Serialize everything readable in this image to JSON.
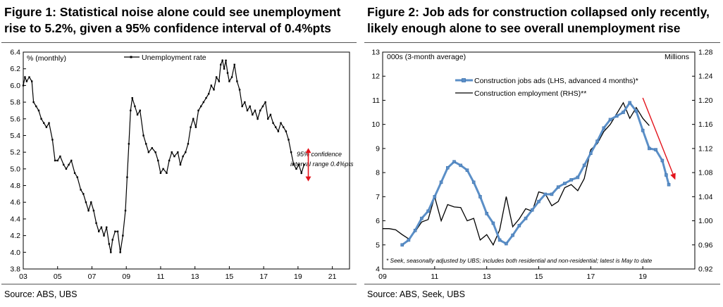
{
  "charts": [
    {
      "title": "Figure 1: Statistical noise alone could see unemployment rise to 5.2%, given a 95% confidence interval of 0.4%pts",
      "source": "Source:  ABS, UBS",
      "units_label": "% (monthly)",
      "legend": "Unemployment rate",
      "annotation": [
        "95% confidence",
        "interval range 0.4%pts"
      ],
      "colors": {
        "line": "#000000",
        "arrow": "#e3131b"
      }
    },
    {
      "title": "Figure 2: Job ads for construction collapsed only recently, likely enough alone to see overall unemployment rise",
      "source": "Source:  ABS, Seek, UBS",
      "units_left": "000s (3-month average)",
      "units_right": "Millions",
      "footnote": "* Seek, seasonally adjusted by UBS; includes both residential and non-residential; latest is May to date",
      "colors": {
        "ads": "#5b8fc7",
        "emp": "#000000",
        "arrow": "#e3131b"
      }
    }
  ],
  "chart_data": [
    {
      "type": "line",
      "xlabel": "",
      "ylabel": "% (monthly)",
      "xlim": [
        2003.0,
        2022.0
      ],
      "ylim": [
        3.8,
        6.4
      ],
      "x_ticks": [
        2003,
        2005,
        2007,
        2009,
        2011,
        2013,
        2015,
        2017,
        2019,
        2021
      ],
      "x_tick_labels": [
        "03",
        "05",
        "07",
        "09",
        "11",
        "13",
        "15",
        "17",
        "19",
        "21"
      ],
      "y_ticks": [
        3.8,
        4.0,
        4.2,
        4.4,
        4.6,
        4.8,
        5.0,
        5.2,
        5.4,
        5.6,
        5.8,
        6.0,
        6.2,
        6.4
      ],
      "y_tick_labels": [
        "3.8",
        "4.0",
        "4.2",
        "4.4",
        "4.6",
        "4.8",
        "5.0",
        "5.2",
        "5.4",
        "5.6",
        "5.8",
        "6.0",
        "6.2",
        "6.4"
      ],
      "series": [
        {
          "name": "Unemployment rate",
          "points": [
            [
              2003.0,
              6.0
            ],
            [
              2003.1,
              6.1
            ],
            [
              2003.2,
              6.05
            ],
            [
              2003.35,
              6.1
            ],
            [
              2003.5,
              6.05
            ],
            [
              2003.6,
              5.8
            ],
            [
              2003.75,
              5.75
            ],
            [
              2003.9,
              5.7
            ],
            [
              2004.05,
              5.6
            ],
            [
              2004.2,
              5.55
            ],
            [
              2004.35,
              5.5
            ],
            [
              2004.5,
              5.55
            ],
            [
              2004.7,
              5.35
            ],
            [
              2004.85,
              5.1
            ],
            [
              2005.0,
              5.1
            ],
            [
              2005.15,
              5.15
            ],
            [
              2005.35,
              5.05
            ],
            [
              2005.5,
              5.0
            ],
            [
              2005.65,
              5.05
            ],
            [
              2005.8,
              5.1
            ],
            [
              2006.0,
              4.95
            ],
            [
              2006.15,
              4.9
            ],
            [
              2006.35,
              4.75
            ],
            [
              2006.5,
              4.7
            ],
            [
              2006.65,
              4.6
            ],
            [
              2006.8,
              4.5
            ],
            [
              2006.95,
              4.6
            ],
            [
              2007.1,
              4.5
            ],
            [
              2007.25,
              4.35
            ],
            [
              2007.4,
              4.25
            ],
            [
              2007.55,
              4.3
            ],
            [
              2007.7,
              4.2
            ],
            [
              2007.85,
              4.3
            ],
            [
              2008.0,
              4.1
            ],
            [
              2008.1,
              4.0
            ],
            [
              2008.2,
              4.15
            ],
            [
              2008.35,
              4.25
            ],
            [
              2008.5,
              4.25
            ],
            [
              2008.65,
              4.0
            ],
            [
              2008.8,
              4.2
            ],
            [
              2008.95,
              4.5
            ],
            [
              2009.05,
              4.9
            ],
            [
              2009.15,
              5.3
            ],
            [
              2009.25,
              5.7
            ],
            [
              2009.35,
              5.85
            ],
            [
              2009.5,
              5.75
            ],
            [
              2009.65,
              5.65
            ],
            [
              2009.8,
              5.7
            ],
            [
              2010.0,
              5.4
            ],
            [
              2010.15,
              5.3
            ],
            [
              2010.3,
              5.2
            ],
            [
              2010.5,
              5.25
            ],
            [
              2010.7,
              5.2
            ],
            [
              2010.85,
              5.1
            ],
            [
              2011.0,
              4.95
            ],
            [
              2011.15,
              5.0
            ],
            [
              2011.35,
              4.95
            ],
            [
              2011.5,
              5.1
            ],
            [
              2011.65,
              5.2
            ],
            [
              2011.8,
              5.15
            ],
            [
              2012.0,
              5.2
            ],
            [
              2012.15,
              5.05
            ],
            [
              2012.3,
              5.15
            ],
            [
              2012.45,
              5.2
            ],
            [
              2012.6,
              5.3
            ],
            [
              2012.75,
              5.5
            ],
            [
              2012.9,
              5.6
            ],
            [
              2013.05,
              5.5
            ],
            [
              2013.2,
              5.7
            ],
            [
              2013.35,
              5.75
            ],
            [
              2013.5,
              5.8
            ],
            [
              2013.65,
              5.85
            ],
            [
              2013.8,
              5.9
            ],
            [
              2013.95,
              6.0
            ],
            [
              2014.1,
              5.95
            ],
            [
              2014.25,
              6.1
            ],
            [
              2014.4,
              6.05
            ],
            [
              2014.5,
              6.25
            ],
            [
              2014.6,
              6.3
            ],
            [
              2014.7,
              6.2
            ],
            [
              2014.8,
              6.3
            ],
            [
              2014.9,
              6.15
            ],
            [
              2015.0,
              6.05
            ],
            [
              2015.15,
              6.1
            ],
            [
              2015.3,
              6.25
            ],
            [
              2015.45,
              6.05
            ],
            [
              2015.6,
              5.95
            ],
            [
              2015.75,
              5.75
            ],
            [
              2015.9,
              5.8
            ],
            [
              2016.05,
              5.7
            ],
            [
              2016.2,
              5.75
            ],
            [
              2016.35,
              5.65
            ],
            [
              2016.5,
              5.7
            ],
            [
              2016.65,
              5.6
            ],
            [
              2016.8,
              5.7
            ],
            [
              2016.95,
              5.75
            ],
            [
              2017.1,
              5.8
            ],
            [
              2017.25,
              5.6
            ],
            [
              2017.4,
              5.65
            ],
            [
              2017.55,
              5.55
            ],
            [
              2017.7,
              5.5
            ],
            [
              2017.85,
              5.45
            ],
            [
              2018.0,
              5.55
            ],
            [
              2018.15,
              5.5
            ],
            [
              2018.3,
              5.45
            ],
            [
              2018.45,
              5.35
            ],
            [
              2018.6,
              5.2
            ],
            [
              2018.75,
              5.05
            ],
            [
              2018.9,
              5.0
            ],
            [
              2019.05,
              5.05
            ],
            [
              2019.2,
              4.95
            ],
            [
              2019.35,
              5.05
            ]
          ]
        }
      ],
      "annotations": [
        "95% confidence interval range 0.4%pts"
      ],
      "arrow_range": [
        4.85,
        5.25
      ],
      "arrow_x": 2019.6,
      "legend_position": "top-center",
      "grid": false
    },
    {
      "type": "line",
      "xlabel": "",
      "ylabel_left": "000s (3-month average)",
      "ylabel_right": "Millions",
      "xlim": [
        2009.0,
        2021.0
      ],
      "ylim_left": [
        4,
        13
      ],
      "ylim_right": [
        0.92,
        1.28
      ],
      "x_ticks": [
        2009,
        2011,
        2013,
        2015,
        2017,
        2019
      ],
      "x_tick_labels": [
        "09",
        "11",
        "13",
        "15",
        "17",
        "19"
      ],
      "y_ticks_left": [
        4,
        5,
        6,
        7,
        8,
        9,
        10,
        11,
        12,
        13
      ],
      "y_tick_labels_left": [
        "4",
        "5",
        "6",
        "7",
        "8",
        "9",
        "10",
        "11",
        "12",
        "13"
      ],
      "y_ticks_right": [
        0.92,
        0.96,
        1.0,
        1.04,
        1.08,
        1.12,
        1.16,
        1.2,
        1.24,
        1.28
      ],
      "y_tick_labels_right": [
        "0.92",
        "0.96",
        "1.00",
        "1.04",
        "1.08",
        "1.12",
        "1.16",
        "1.20",
        "1.24",
        "1.28"
      ],
      "series": [
        {
          "name": "Construction jobs ads (LHS, advanced 4 months)*",
          "axis": "left",
          "points": [
            [
              2009.75,
              5.0
            ],
            [
              2010.0,
              5.2
            ],
            [
              2010.25,
              5.6
            ],
            [
              2010.5,
              6.1
            ],
            [
              2010.75,
              6.4
            ],
            [
              2011.0,
              7.0
            ],
            [
              2011.25,
              7.6
            ],
            [
              2011.5,
              8.2
            ],
            [
              2011.75,
              8.45
            ],
            [
              2012.0,
              8.3
            ],
            [
              2012.25,
              8.1
            ],
            [
              2012.5,
              7.6
            ],
            [
              2012.75,
              7.0
            ],
            [
              2013.0,
              6.3
            ],
            [
              2013.25,
              5.9
            ],
            [
              2013.5,
              5.2
            ],
            [
              2013.75,
              5.05
            ],
            [
              2014.0,
              5.4
            ],
            [
              2014.25,
              5.8
            ],
            [
              2014.5,
              6.1
            ],
            [
              2014.75,
              6.45
            ],
            [
              2015.0,
              6.8
            ],
            [
              2015.25,
              7.1
            ],
            [
              2015.5,
              7.1
            ],
            [
              2015.75,
              7.4
            ],
            [
              2016.0,
              7.55
            ],
            [
              2016.25,
              7.7
            ],
            [
              2016.5,
              7.8
            ],
            [
              2016.75,
              8.3
            ],
            [
              2017.0,
              8.8
            ],
            [
              2017.25,
              9.3
            ],
            [
              2017.5,
              9.85
            ],
            [
              2017.75,
              10.2
            ],
            [
              2018.0,
              10.35
            ],
            [
              2018.25,
              10.5
            ],
            [
              2018.5,
              10.9
            ],
            [
              2018.75,
              10.55
            ],
            [
              2019.0,
              9.75
            ],
            [
              2019.25,
              9.0
            ],
            [
              2019.5,
              8.95
            ],
            [
              2019.75,
              8.5
            ],
            [
              2019.9,
              7.9
            ],
            [
              2020.0,
              7.5
            ]
          ]
        },
        {
          "name": "Construction employment (RHS)**",
          "axis": "right",
          "points": [
            [
              2009.0,
              0.987
            ],
            [
              2009.25,
              0.987
            ],
            [
              2009.5,
              0.985
            ],
            [
              2009.75,
              0.977
            ],
            [
              2010.0,
              0.97
            ],
            [
              2010.25,
              0.982
            ],
            [
              2010.5,
              0.998
            ],
            [
              2010.75,
              1.002
            ],
            [
              2011.0,
              1.04
            ],
            [
              2011.25,
              1.0
            ],
            [
              2011.5,
              1.027
            ],
            [
              2011.75,
              1.023
            ],
            [
              2012.0,
              1.022
            ],
            [
              2012.25,
              1.0
            ],
            [
              2012.5,
              1.004
            ],
            [
              2012.75,
              0.968
            ],
            [
              2013.0,
              0.977
            ],
            [
              2013.25,
              0.96
            ],
            [
              2013.5,
              0.985
            ],
            [
              2013.75,
              1.04
            ],
            [
              2014.0,
              0.99
            ],
            [
              2014.25,
              1.003
            ],
            [
              2014.5,
              1.02
            ],
            [
              2014.75,
              1.016
            ],
            [
              2015.0,
              1.048
            ],
            [
              2015.25,
              1.045
            ],
            [
              2015.5,
              1.025
            ],
            [
              2015.75,
              1.032
            ],
            [
              2016.0,
              1.055
            ],
            [
              2016.25,
              1.06
            ],
            [
              2016.5,
              1.05
            ],
            [
              2016.75,
              1.07
            ],
            [
              2017.0,
              1.118
            ],
            [
              2017.25,
              1.128
            ],
            [
              2017.5,
              1.148
            ],
            [
              2017.75,
              1.16
            ],
            [
              2018.0,
              1.178
            ],
            [
              2018.25,
              1.196
            ],
            [
              2018.5,
              1.17
            ],
            [
              2018.75,
              1.188
            ],
            [
              2019.0,
              1.17
            ],
            [
              2019.25,
              1.158
            ]
          ]
        }
      ],
      "arrow_from": [
        2019.0,
        11.1
      ],
      "arrow_to": [
        2020.25,
        7.7
      ],
      "legend_position": "top-left",
      "grid": false
    }
  ]
}
